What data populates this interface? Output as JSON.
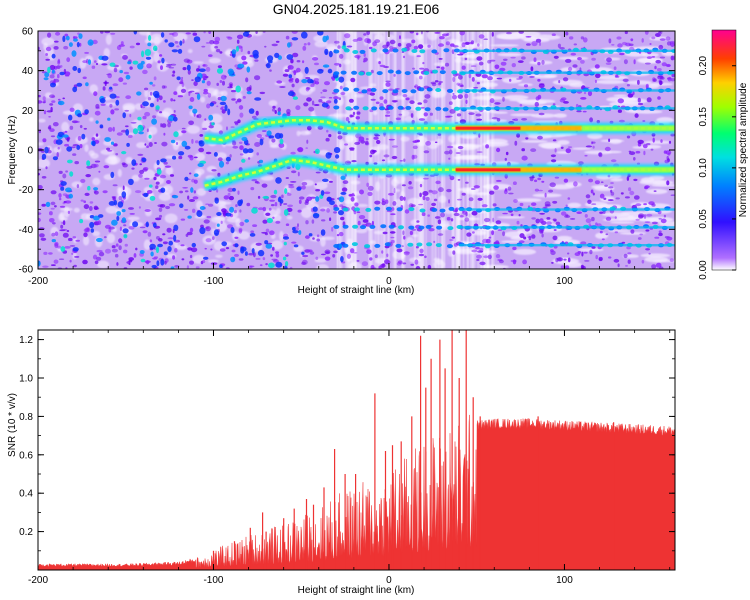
{
  "title": "GN04.2025.181.19.21.E06",
  "chart_data": [
    {
      "type": "heatmap",
      "xlabel": "Height of straight line (km)",
      "ylabel": "Frequency (Hz)",
      "xlim": [
        -200,
        163
      ],
      "ylim": [
        -60,
        60
      ],
      "x_ticks": [
        -200,
        -100,
        0,
        100
      ],
      "x_tick_labels": [
        "-200",
        "-100",
        "0",
        "100"
      ],
      "y_ticks": [
        60,
        40,
        20,
        0,
        -20,
        -40,
        -60
      ],
      "y_tick_labels": [
        "60",
        "40",
        "20",
        "0",
        "-20",
        "-40",
        "-60"
      ],
      "colorbar": {
        "label": "Normalized spectral amplitude",
        "range": [
          0,
          0.235
        ],
        "ticks": [
          0.0,
          0.05,
          0.1,
          0.15,
          0.2
        ],
        "tick_labels": [
          "0.00",
          "0.05",
          "0.10",
          "0.15",
          "0.20"
        ],
        "colormap": [
          "#ffffff",
          "#7b00ff",
          "#0040ff",
          "#00c8ff",
          "#00ff80",
          "#d0ff00",
          "#ffc000",
          "#ff3000",
          "#ff0080"
        ]
      },
      "ridges": [
        {
          "points": [
            [
              -105,
              6
            ],
            [
              -95,
              5
            ],
            [
              -85,
              9
            ],
            [
              -75,
              13
            ],
            [
              -65,
              14
            ],
            [
              -55,
              15
            ],
            [
              -45,
              15
            ],
            [
              -35,
              14
            ],
            [
              -25,
              11
            ],
            [
              -10,
              11
            ],
            [
              0,
              11
            ],
            [
              20,
              11
            ],
            [
              38,
              11
            ],
            [
              60,
              11
            ],
            [
              100,
              11
            ],
            [
              163,
              11
            ]
          ],
          "peak_from_km": 38
        },
        {
          "points": [
            [
              -105,
              -18
            ],
            [
              -95,
              -16
            ],
            [
              -85,
              -13
            ],
            [
              -75,
              -11
            ],
            [
              -65,
              -8
            ],
            [
              -55,
              -5
            ],
            [
              -45,
              -6
            ],
            [
              -35,
              -8
            ],
            [
              -25,
              -10
            ],
            [
              -10,
              -10
            ],
            [
              0,
              -10
            ],
            [
              20,
              -10
            ],
            [
              38,
              -10
            ],
            [
              60,
              -10
            ],
            [
              100,
              -10
            ],
            [
              163,
              -10
            ]
          ],
          "peak_from_km": 38
        }
      ],
      "harmonic_bands_hz": [
        50,
        39,
        30,
        21,
        -30,
        -39,
        -48
      ]
    },
    {
      "type": "area",
      "xlabel": "Height of straight line (km)",
      "ylabel": "SNR (10 * v/v)",
      "y_multiplier": "(x10^4)",
      "xlim": [
        -200,
        163
      ],
      "ylim": [
        0,
        1.25
      ],
      "x_ticks": [
        -200,
        -100,
        0,
        100
      ],
      "x_tick_labels": [
        "-200",
        "-100",
        "0",
        "100"
      ],
      "y_ticks": [
        0.2,
        0.4,
        0.6,
        0.8,
        1.0,
        1.2
      ],
      "y_tick_labels": [
        "0.2",
        "0.4",
        "0.6",
        "0.8",
        "1.0",
        "1.2"
      ],
      "color": "#ee3333",
      "envelope": {
        "x": [
          -200,
          -150,
          -120,
          -110,
          -100,
          -90,
          -80,
          -70,
          -60,
          -50,
          -40,
          -30,
          -20,
          -10,
          0,
          10,
          20,
          30,
          40,
          45,
          50,
          60,
          80,
          100,
          120,
          140,
          163
        ],
        "y": [
          0.03,
          0.03,
          0.04,
          0.06,
          0.1,
          0.13,
          0.17,
          0.2,
          0.22,
          0.26,
          0.3,
          0.36,
          0.4,
          0.44,
          0.48,
          0.55,
          0.63,
          0.68,
          0.72,
          0.75,
          0.78,
          0.79,
          0.79,
          0.78,
          0.77,
          0.76,
          0.75
        ]
      },
      "peaks": [
        {
          "x": -100,
          "y": 0.1
        },
        {
          "x": -88,
          "y": 0.15
        },
        {
          "x": -79,
          "y": 0.22
        },
        {
          "x": -72,
          "y": 0.3
        },
        {
          "x": -70,
          "y": 0.2
        },
        {
          "x": -60,
          "y": 0.27
        },
        {
          "x": -54,
          "y": 0.32
        },
        {
          "x": -47,
          "y": 0.37
        },
        {
          "x": -43,
          "y": 0.34
        },
        {
          "x": -37,
          "y": 0.43
        },
        {
          "x": -31,
          "y": 0.63
        },
        {
          "x": -25,
          "y": 0.5
        },
        {
          "x": -19,
          "y": 0.5
        },
        {
          "x": -8,
          "y": 0.92
        },
        {
          "x": -2,
          "y": 0.62
        },
        {
          "x": 2,
          "y": 0.65
        },
        {
          "x": 7,
          "y": 0.67
        },
        {
          "x": 13,
          "y": 0.8
        },
        {
          "x": 18,
          "y": 1.22
        },
        {
          "x": 21,
          "y": 0.95
        },
        {
          "x": 24,
          "y": 1.1
        },
        {
          "x": 29,
          "y": 1.2
        },
        {
          "x": 32,
          "y": 1.05
        },
        {
          "x": 36,
          "y": 1.27
        },
        {
          "x": 40,
          "y": 1.0
        },
        {
          "x": 44,
          "y": 1.25
        },
        {
          "x": 48,
          "y": 0.9
        },
        {
          "x": 52,
          "y": 0.8
        },
        {
          "x": 85,
          "y": 0.8
        },
        {
          "x": 128,
          "y": 0.77
        }
      ]
    }
  ]
}
